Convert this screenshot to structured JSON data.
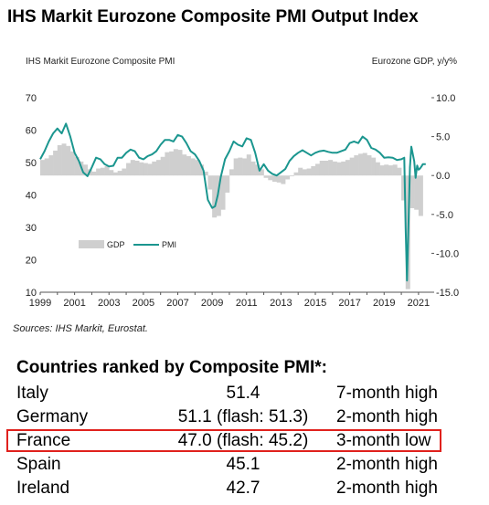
{
  "title": "IHS Markit Eurozone Composite PMI Output Index",
  "source": "Sources: IHS Markit, Eurostat.",
  "colors": {
    "pmi": "#1b968f",
    "gdp": "#cfcfcf",
    "highlight": "#e0211d"
  },
  "chart_data": {
    "type": "line",
    "left_axis_label": "IHS Markit Eurozone Composite PMI",
    "right_axis_label": "Eurozone GDP, y/y%",
    "left_ylim": [
      10,
      70
    ],
    "left_ticks": [
      "10",
      "20",
      "30",
      "40",
      "50",
      "60",
      "70"
    ],
    "right_ylim": [
      -15,
      10
    ],
    "right_ticks": [
      "-15.0",
      "-10.0",
      "-5.0",
      "0.0",
      "5.0",
      "10.0"
    ],
    "xlim": [
      1999,
      2021.75
    ],
    "x_tick_labels": [
      "1999",
      "2001",
      "2003",
      "2005",
      "2007",
      "2009",
      "2011",
      "2013",
      "2015",
      "2017",
      "2019",
      "2021"
    ],
    "grid": false,
    "legend_placement": "lower-left",
    "series": [
      {
        "name": "GDP",
        "kind": "bar",
        "axis": "right",
        "x": [
          1999.0,
          1999.25,
          1999.5,
          1999.75,
          2000.0,
          2000.25,
          2000.5,
          2000.75,
          2001.0,
          2001.25,
          2001.5,
          2001.75,
          2002.0,
          2002.25,
          2002.5,
          2002.75,
          2003.0,
          2003.25,
          2003.5,
          2003.75,
          2004.0,
          2004.25,
          2004.5,
          2004.75,
          2005.0,
          2005.25,
          2005.5,
          2005.75,
          2006.0,
          2006.25,
          2006.5,
          2006.75,
          2007.0,
          2007.25,
          2007.5,
          2007.75,
          2008.0,
          2008.25,
          2008.5,
          2008.75,
          2009.0,
          2009.25,
          2009.5,
          2009.75,
          2010.0,
          2010.25,
          2010.5,
          2010.75,
          2011.0,
          2011.25,
          2011.5,
          2011.75,
          2012.0,
          2012.25,
          2012.5,
          2012.75,
          2013.0,
          2013.25,
          2013.5,
          2013.75,
          2014.0,
          2014.25,
          2014.5,
          2014.75,
          2015.0,
          2015.25,
          2015.5,
          2015.75,
          2016.0,
          2016.25,
          2016.5,
          2016.75,
          2017.0,
          2017.25,
          2017.5,
          2017.75,
          2018.0,
          2018.25,
          2018.5,
          2018.75,
          2019.0,
          2019.25,
          2019.5,
          2019.75,
          2020.0,
          2020.25,
          2020.5,
          2020.75,
          2021.0
        ],
        "values": [
          2.0,
          2.2,
          2.6,
          3.2,
          3.9,
          4.1,
          3.8,
          3.1,
          2.4,
          1.8,
          1.4,
          0.8,
          0.5,
          0.9,
          1.0,
          1.2,
          0.7,
          0.4,
          0.6,
          0.9,
          1.6,
          2.0,
          1.9,
          1.7,
          1.6,
          1.5,
          1.8,
          2.0,
          2.4,
          3.0,
          3.1,
          3.4,
          3.3,
          2.7,
          2.5,
          2.2,
          2.0,
          1.4,
          0.5,
          -1.8,
          -5.4,
          -5.2,
          -4.4,
          -2.2,
          0.8,
          2.2,
          2.3,
          2.2,
          2.7,
          1.8,
          1.4,
          0.8,
          -0.3,
          -0.6,
          -0.8,
          -0.9,
          -1.1,
          -0.5,
          -0.1,
          0.4,
          1.0,
          0.8,
          0.9,
          1.2,
          1.5,
          1.9,
          1.9,
          2.0,
          1.8,
          1.7,
          1.8,
          2.0,
          2.3,
          2.6,
          2.8,
          2.9,
          2.6,
          2.3,
          1.7,
          1.3,
          1.4,
          1.3,
          1.4,
          1.0,
          -3.2,
          -14.6,
          -4.2,
          -4.4,
          -5.2
        ]
      },
      {
        "name": "PMI",
        "kind": "line",
        "axis": "left",
        "x": [
          1999.0,
          1999.25,
          1999.5,
          1999.75,
          2000.0,
          2000.25,
          2000.5,
          2000.75,
          2001.0,
          2001.25,
          2001.5,
          2001.75,
          2002.0,
          2002.25,
          2002.5,
          2002.75,
          2003.0,
          2003.25,
          2003.5,
          2003.75,
          2004.0,
          2004.25,
          2004.5,
          2004.75,
          2005.0,
          2005.25,
          2005.5,
          2005.75,
          2006.0,
          2006.25,
          2006.5,
          2006.75,
          2007.0,
          2007.25,
          2007.5,
          2007.75,
          2008.0,
          2008.25,
          2008.5,
          2008.75,
          2009.0,
          2009.17,
          2009.33,
          2009.5,
          2009.75,
          2010.0,
          2010.25,
          2010.5,
          2010.75,
          2011.0,
          2011.25,
          2011.5,
          2011.75,
          2012.0,
          2012.25,
          2012.5,
          2012.75,
          2013.0,
          2013.25,
          2013.5,
          2013.75,
          2014.0,
          2014.25,
          2014.5,
          2014.75,
          2015.0,
          2015.25,
          2015.5,
          2015.75,
          2016.0,
          2016.25,
          2016.5,
          2016.75,
          2017.0,
          2017.25,
          2017.5,
          2017.75,
          2018.0,
          2018.25,
          2018.5,
          2018.75,
          2019.0,
          2019.25,
          2019.5,
          2019.75,
          2020.0,
          2020.17,
          2020.25,
          2020.33,
          2020.42,
          2020.5,
          2020.58,
          2020.75,
          2020.83,
          2020.92,
          2021.0,
          2021.08,
          2021.17,
          2021.25,
          2021.42
        ],
        "values": [
          51.0,
          53.5,
          56.5,
          59.0,
          60.5,
          59.0,
          62.0,
          58.0,
          53.0,
          50.5,
          47.0,
          45.8,
          48.5,
          51.5,
          51.0,
          49.5,
          48.8,
          49.0,
          51.5,
          51.5,
          53.0,
          54.0,
          53.5,
          51.5,
          51.0,
          52.0,
          52.5,
          53.5,
          55.5,
          57.0,
          57.0,
          56.5,
          58.5,
          58.0,
          56.0,
          53.5,
          52.5,
          50.5,
          47.5,
          38.5,
          36.0,
          36.5,
          40.0,
          45.5,
          51.0,
          53.5,
          56.5,
          55.5,
          55.0,
          57.5,
          57.0,
          53.0,
          47.5,
          49.5,
          47.5,
          46.5,
          46.0,
          47.0,
          48.0,
          50.5,
          52.0,
          53.0,
          53.8,
          53.0,
          52.2,
          53.0,
          53.5,
          53.7,
          53.3,
          53.0,
          53.0,
          53.5,
          54.0,
          56.0,
          56.5,
          56.0,
          58.0,
          57.0,
          54.5,
          54.0,
          53.0,
          51.5,
          51.6,
          51.5,
          50.8,
          51.0,
          51.5,
          29.7,
          13.6,
          31.9,
          48.5,
          54.9,
          50.4,
          45.3,
          49.1,
          47.8,
          48.1,
          48.8,
          49.5,
          49.5
        ],
        "point_labels": []
      }
    ]
  },
  "ranking": {
    "heading": "Countries ranked by Composite PMI*:",
    "rows": [
      {
        "country": "Italy",
        "value": "51.4",
        "note": "7-month high"
      },
      {
        "country": "Germany",
        "value": "51.1 (flash: 51.3)",
        "note": "2-month high"
      },
      {
        "country": "France",
        "value": "47.0 (flash: 45.2)",
        "note": "3-month low"
      },
      {
        "country": "Spain",
        "value": "45.1",
        "note": "2-month high"
      },
      {
        "country": "Ireland",
        "value": "42.7",
        "note": "2-month high"
      }
    ]
  }
}
